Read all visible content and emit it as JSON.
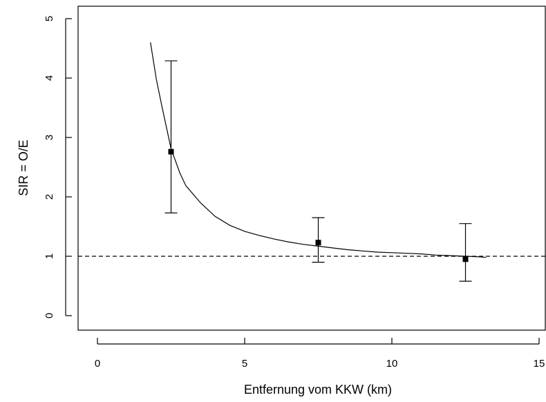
{
  "chart_data": {
    "type": "scatter",
    "title": "",
    "xlabel": "Entfernung vom KKW (km)",
    "ylabel": "SIR = O/E",
    "xlim": [
      0,
      15
    ],
    "ylim": [
      0,
      5
    ],
    "x_ticks": [
      {
        "value": 0,
        "label": "0"
      },
      {
        "value": 5,
        "label": "5"
      },
      {
        "value": 10,
        "label": "10"
      },
      {
        "value": 15,
        "label": "15"
      }
    ],
    "y_ticks": [
      {
        "value": 0,
        "label": "0"
      },
      {
        "value": 1,
        "label": "1"
      },
      {
        "value": 2,
        "label": "2"
      },
      {
        "value": 3,
        "label": "3"
      },
      {
        "value": 4,
        "label": "4"
      },
      {
        "value": 5,
        "label": "5"
      }
    ],
    "points": [
      {
        "x": 2.5,
        "y": 2.76,
        "lower": 1.73,
        "upper": 4.29
      },
      {
        "x": 7.5,
        "y": 1.23,
        "lower": 0.9,
        "upper": 1.65
      },
      {
        "x": 12.5,
        "y": 0.95,
        "lower": 0.58,
        "upper": 1.55
      }
    ],
    "fitted_curve": {
      "x": [
        1.8,
        2.0,
        2.2,
        2.5,
        2.8,
        3.0,
        3.5,
        4.0,
        4.5,
        5.0,
        5.5,
        6.0,
        6.5,
        7.0,
        7.5,
        8.0,
        8.5,
        9.0,
        9.5,
        10.0,
        10.5,
        11.0,
        11.5,
        12.0,
        12.5,
        13.0,
        13.2
      ],
      "y": [
        4.6,
        3.98,
        3.5,
        2.81,
        2.4,
        2.19,
        1.9,
        1.67,
        1.52,
        1.42,
        1.35,
        1.29,
        1.24,
        1.2,
        1.17,
        1.14,
        1.11,
        1.09,
        1.07,
        1.06,
        1.05,
        1.04,
        1.02,
        1.01,
        1.0,
        0.99,
        0.98
      ]
    },
    "reference_line": {
      "y": 1,
      "style": "dashed"
    },
    "grid": false,
    "legend": false
  }
}
